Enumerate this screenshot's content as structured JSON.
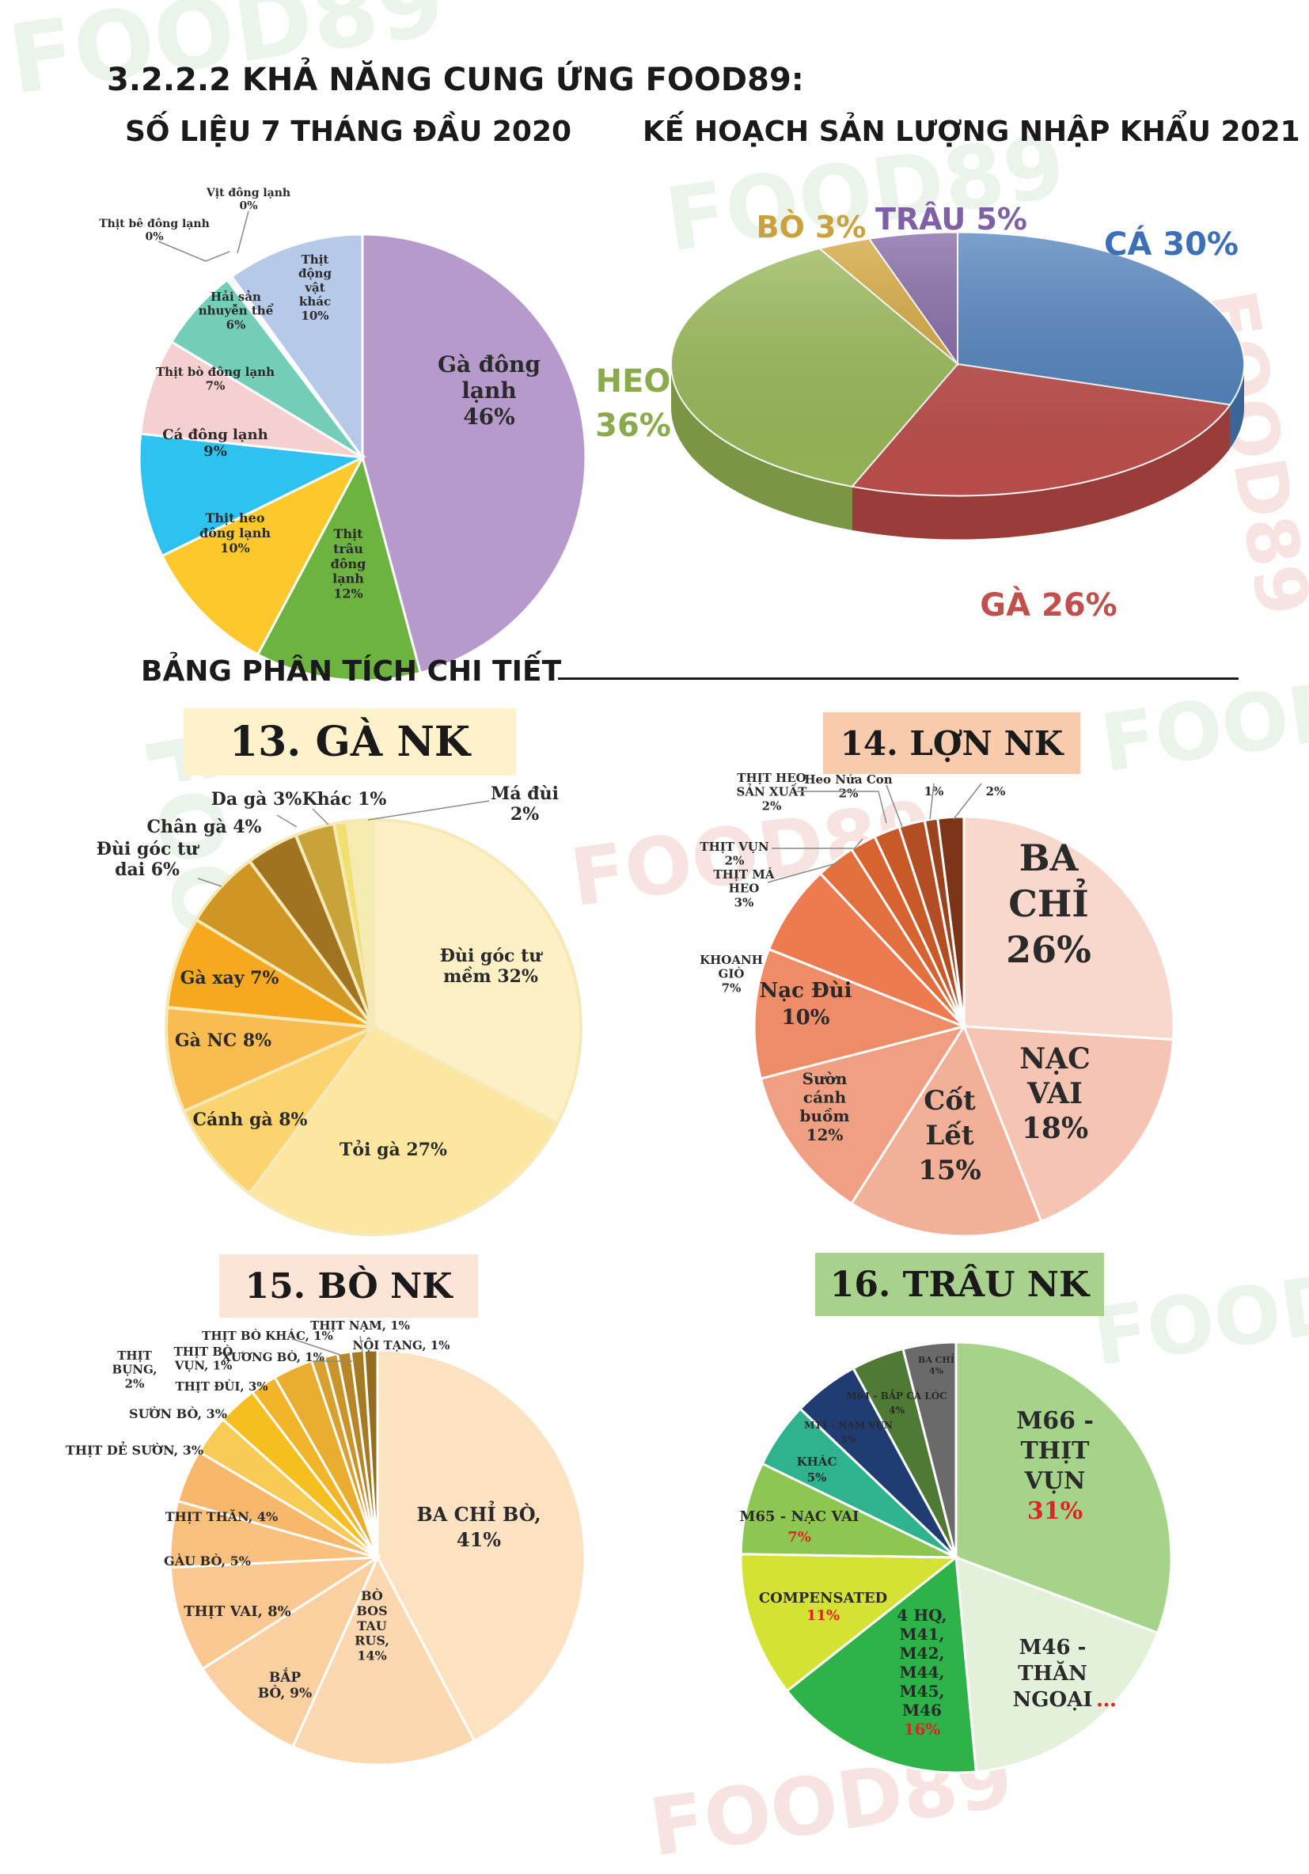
{
  "header": {
    "section_title": "3.2.2.2  KHẢ NĂNG CUNG ỨNG FOOD89:",
    "left_title": "SỐ LIỆU 7 THÁNG ĐẦU 2020",
    "right_title": "KẾ HOẠCH SẢN LƯỢNG NHẬP KHẨU 2021",
    "table_title": "BẢNG PHÂN TÍCH CHI TIẾT"
  },
  "watermark": "FOOD89",
  "chart_data": [
    {
      "id": "supply2020",
      "type": "pie",
      "title": "SỐ LIỆU 7 THÁNG ĐẦU 2020",
      "slices": [
        {
          "label": "Gà đông lạnh 46%",
          "value": 46,
          "color": "#b59acb"
        },
        {
          "label": "Thịt trâu đông lạnh 12%",
          "value": 12,
          "color": "#6db33f"
        },
        {
          "label": "Thịt heo đông lạnh 10%",
          "value": 10,
          "color": "#fcc82c"
        },
        {
          "label": "Cá đông lạnh 9%",
          "value": 9,
          "color": "#2ec2f1"
        },
        {
          "label": "Thịt bò đông lạnh 7%",
          "value": 7,
          "color": "#f6cfd0"
        },
        {
          "label": "Hải sản nhuyễn thể 6%",
          "value": 6,
          "color": "#74cdb7"
        },
        {
          "label": "Thịt bê đông lạnh 0%",
          "value": 0.2,
          "color": "#e0e0e0"
        },
        {
          "label": "Vịt đông lạnh 0%",
          "value": 0.2,
          "color": "#cfcfcf"
        },
        {
          "label": "Thịt động vật khác 10%",
          "value": 10,
          "color": "#b7c9e8"
        }
      ]
    },
    {
      "id": "plan2021",
      "type": "pie",
      "title": "KẾ HOẠCH SẢN LƯỢNG NHẬP KHẨU 2021",
      "slices": [
        {
          "label": "CÁ 30%",
          "value": 30,
          "color": "#4f81bd"
        },
        {
          "label": "GÀ 26%",
          "value": 26,
          "color": "#c0504d"
        },
        {
          "label": "HEO 36%",
          "value": 36,
          "color": "#9bbb59"
        },
        {
          "label": "BÒ 3%",
          "value": 3,
          "color": "#d4a63a"
        },
        {
          "label": "TRÂU 5%",
          "value": 5,
          "color": "#8064a2"
        }
      ],
      "label_colors": {
        "CÁ": "#3b6fb6",
        "GÀ": "#c0504d",
        "HEO": "#8aab4b",
        "BÒ": "#c9a23f",
        "TRÂU": "#7f5fa5"
      }
    },
    {
      "id": "ga",
      "type": "pie",
      "title": "13. GÀ NK",
      "slices": [
        {
          "label": "Đùi góc tư mềm 32%",
          "value": 32,
          "color": "#fdf0c4"
        },
        {
          "label": "Tỏi gà 27%",
          "value": 27,
          "color": "#fde6a0"
        },
        {
          "label": "Cánh gà 8%",
          "value": 8,
          "color": "#fbd470"
        },
        {
          "label": "Gà NC 8%",
          "value": 8,
          "color": "#f9bc50"
        },
        {
          "label": "Gà xay 7%",
          "value": 7,
          "color": "#f6a81e"
        },
        {
          "label": "Đùi góc tư dai 6%",
          "value": 6,
          "color": "#cf9624"
        },
        {
          "label": "Chân gà 4%",
          "value": 4,
          "color": "#a07321"
        },
        {
          "label": "Da gà 3%",
          "value": 3,
          "color": "#c8a33a"
        },
        {
          "label": "Khác 1%",
          "value": 1,
          "color": "#efe070"
        },
        {
          "label": "Má đùi 2%",
          "value": 2,
          "color": "#f5ecb0"
        }
      ]
    },
    {
      "id": "lon",
      "type": "pie",
      "title": "14. LỢN NK",
      "slices": [
        {
          "label": "BA CHỈ 26%",
          "value": 26,
          "color": "#f8d8cc"
        },
        {
          "label": "NẠC VAI 18%",
          "value": 18,
          "color": "#f5c4b2"
        },
        {
          "label": "Cốt Lết 15%",
          "value": 15,
          "color": "#f2b098"
        },
        {
          "label": "Sườn cánh buồm 12%",
          "value": 12,
          "color": "#f09f82"
        },
        {
          "label": "Nạc Đùi 10%",
          "value": 10,
          "color": "#ee8c68"
        },
        {
          "label": "KHOANH GIÒ 7%",
          "value": 7,
          "color": "#ec7b50"
        },
        {
          "label": "THỊT MÁ HEO 3%",
          "value": 3,
          "color": "#e2703e"
        },
        {
          "label": "THỊT VỤN 2%",
          "value": 2,
          "color": "#d66330"
        },
        {
          "label": "THỊT HEO SẢN XUẤT 2%",
          "value": 2,
          "color": "#c85a2a"
        },
        {
          "label": "Heo Nửa Con 2%",
          "value": 2,
          "color": "#b34e24"
        },
        {
          "label": "1%",
          "value": 1,
          "color": "#9b421e"
        },
        {
          "label": "2%",
          "value": 2,
          "color": "#7c3418"
        }
      ]
    },
    {
      "id": "bo",
      "type": "pie",
      "title": "15. BÒ NK",
      "slices": [
        {
          "label": "BA CHỈ BÒ, 41%",
          "value": 41,
          "color": "#fde2c2"
        },
        {
          "label": "BÒ BOS TAU RUS, 14%",
          "value": 14,
          "color": "#fcd8b0"
        },
        {
          "label": "BẮP BÒ, 9%",
          "value": 9,
          "color": "#fbd0a0"
        },
        {
          "label": "THỊT VAI, 8%",
          "value": 8,
          "color": "#fac890"
        },
        {
          "label": "GÀU BÒ, 5%",
          "value": 5,
          "color": "#f9c07e"
        },
        {
          "label": "THỊT THĂN, 4%",
          "value": 4,
          "color": "#f7b86c"
        },
        {
          "label": "THỊT DẺ SƯỜN, 3%",
          "value": 3,
          "color": "#f7cb55"
        },
        {
          "label": "SƯỜN BÒ, 3%",
          "value": 3,
          "color": "#f5c01f"
        },
        {
          "label": "THỊT BỤNG, 2%",
          "value": 2,
          "color": "#f2b52a"
        },
        {
          "label": "THỊT ĐÙI, 3%",
          "value": 3,
          "color": "#e9ad30"
        },
        {
          "label": "THỊT BÒ VỤN, 1%",
          "value": 1,
          "color": "#d9a02e"
        },
        {
          "label": "XƯƠNG BÒ, 1%",
          "value": 1,
          "color": "#c9942a"
        },
        {
          "label": "THỊT BÒ KHÁC, 1%",
          "value": 1,
          "color": "#b88626"
        },
        {
          "label": "THỊT NẠM, 1%",
          "value": 1,
          "color": "#a67a22"
        },
        {
          "label": "NỘI TẠNG, 1%",
          "value": 1,
          "color": "#946e1e"
        }
      ]
    },
    {
      "id": "trau",
      "type": "pie",
      "title": "16. TRÂU NK",
      "slices": [
        {
          "label": "M66 - THỊT VỤN 31%",
          "value": 31,
          "color": "#a6d38a"
        },
        {
          "label": "M46 - THĂN NGOẠI...",
          "value": 18,
          "color": "#e3f1da"
        },
        {
          "label": "4 HQ, M41, M42, M44, M45, M46 16%",
          "value": 16,
          "color": "#2db34a"
        },
        {
          "label": "COMPENSATED 11%",
          "value": 11,
          "color": "#d4e234"
        },
        {
          "label": "M65 - NẠC VAI 7%",
          "value": 7,
          "color": "#8dc653"
        },
        {
          "label": "KHÁC 5%",
          "value": 5,
          "color": "#2fb38e"
        },
        {
          "label": "M11 - NẠM VỤN 5%",
          "value": 5,
          "color": "#1f3d73"
        },
        {
          "label": "M64 - BẮP CÁ LÓC 4%",
          "value": 4,
          "color": "#4f7a35"
        },
        {
          "label": "BA CHỈ 4%",
          "value": 4,
          "color": "#6a6a6a"
        }
      ]
    }
  ],
  "labels": {
    "s20": {
      "ga_dong_lanh": [
        "Gà đông",
        "lạnh",
        "46%"
      ],
      "trau": [
        "Thịt",
        "trâu",
        "đông",
        "lạnh",
        "12%"
      ],
      "heo": [
        "Thịt heo",
        "đông lạnh",
        "10%"
      ],
      "ca": [
        "Cá đông lạnh",
        "9%"
      ],
      "bo": [
        "Thịt bò đông lạnh",
        "7%"
      ],
      "haisan": [
        "Hải sản",
        "nhuyễn thể",
        "6%"
      ],
      "be": [
        "Thịt bê đông lạnh",
        "0%"
      ],
      "vit": [
        "Vịt đông lạnh",
        "0%"
      ],
      "khac": [
        "Thịt",
        "động",
        "vật",
        "khác",
        "10%"
      ]
    },
    "p21": {
      "ca": "CÁ 30%",
      "ga": "GÀ 26%",
      "heo": [
        "HEO",
        "36%"
      ],
      "bo": "BÒ 3%",
      "trau": "TRÂU 5%"
    },
    "ga": {
      "dui_mem": [
        "Đùi góc tư",
        "mềm 32%"
      ],
      "toi": "Tỏi gà 27%",
      "canh": "Cánh gà 8%",
      "nc": "Gà NC 8%",
      "xay": "Gà xay 7%",
      "dui_dai": [
        "Đùi góc tư",
        "dai 6%"
      ],
      "chan": "Chân gà 4%",
      "da": "Da gà 3%",
      "khac": "Khác 1%",
      "ma": [
        "Má đùi",
        "2%"
      ]
    },
    "lon": {
      "bachi": [
        "BA",
        "CHỈ",
        "26%"
      ],
      "nacvai": [
        "NẠC",
        "VAI",
        "18%"
      ],
      "cotlet": [
        "Cốt",
        "Lết",
        "15%"
      ],
      "suon": [
        "Sườn",
        "cánh",
        "buồm",
        "12%"
      ],
      "nacdui": [
        "Nạc Đùi",
        "10%"
      ],
      "khoanh": [
        "KHOANH",
        "GIÒ",
        "7%"
      ],
      "ma": [
        "THỊT MÁ",
        "HEO",
        "3%"
      ],
      "vun": [
        "THỊT VỤN",
        "2%"
      ],
      "sx": [
        "THỊT HEO",
        "SẢN XUẤT",
        "2%"
      ],
      "nuacon": [
        "Heo Nửa Con",
        "2%"
      ],
      "one": "1%",
      "two": "2%"
    },
    "bo": {
      "bachi": [
        "BA CHỈ BÒ,",
        "41%"
      ],
      "bos": [
        "BÒ",
        "BOS",
        "TAU",
        "RUS,",
        "14%"
      ],
      "bap": [
        "BẮP",
        "BÒ, 9%"
      ],
      "vai": "THỊT VAI, 8%",
      "gau": "GÀU BÒ, 5%",
      "than": "THỊT THĂN, 4%",
      "desuon": "THỊT DẺ SƯỜN, 3%",
      "suon": "SƯỜN BÒ, 3%",
      "bung": [
        "THỊT",
        "BỤNG,",
        "2%"
      ],
      "dui": "THỊT ĐÙI, 3%",
      "vun": [
        "THỊT BÒ",
        "VỤN, 1%"
      ],
      "xuong": "XƯƠNG BÒ, 1%",
      "khac": "THỊT BÒ KHÁC, 1%",
      "nam": "THỊT NẠM, 1%",
      "noitang": "NỘI TẠNG, 1%"
    },
    "trau": {
      "m66": [
        "M66 -",
        "THỊT",
        "VỤN"
      ],
      "m66p": "31%",
      "m46": [
        "M46 -",
        "THĂN",
        "NGOẠI"
      ],
      "m46e": "…",
      "hq": [
        "4 HQ,",
        "M41,",
        "M42,",
        "M44,",
        "M45,",
        "M46"
      ],
      "hqp": "16%",
      "comp": "COMPENSATED",
      "compp": "11%",
      "m65": "M65 - NẠC VAI",
      "m65p": "7%",
      "khac": [
        "KHÁC",
        "5%"
      ],
      "m11": [
        "M11 - NẠM VỤN",
        "5%"
      ],
      "m64": [
        "M64 - BẮP CÁ LÓC",
        "4%"
      ],
      "bachi": [
        "BA CHỈ",
        "4%"
      ]
    }
  },
  "colors": {
    "ga_box": "#fdf2cc",
    "lon_box": "#f8cbad",
    "bo_box": "#fce4d6",
    "trau_box": "#a9d18e",
    "red_pct": "#e02424"
  }
}
